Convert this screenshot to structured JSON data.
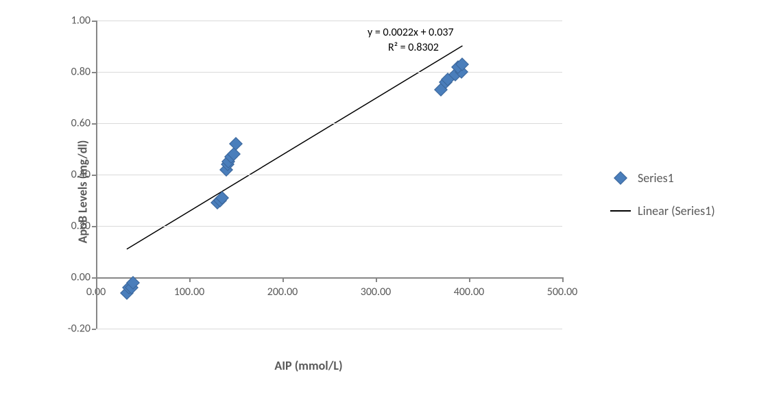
{
  "chart": {
    "type": "scatter",
    "x_axis": {
      "label": "AIP (mmol/L)",
      "min": 0,
      "max": 500,
      "ticks": [
        0,
        100,
        200,
        300,
        400,
        500
      ],
      "tick_labels": [
        "0.00",
        "100.00",
        "200.00",
        "300.00",
        "400.00",
        "500.00"
      ],
      "label_fontsize": 18,
      "tick_fontsize": 16,
      "color": "#595959"
    },
    "y_axis": {
      "label": "ApoB Levels (mg/dl)",
      "min": -0.2,
      "max": 1.0,
      "ticks": [
        -0.2,
        0.0,
        0.2,
        0.4,
        0.6,
        0.8,
        1.0
      ],
      "tick_labels": [
        "-0.20",
        "0.00",
        "0.20",
        "0.40",
        "0.60",
        "0.80",
        "1.00"
      ],
      "label_fontsize": 18,
      "tick_fontsize": 16,
      "color": "#595959"
    },
    "grid_color": "#d9d9d9",
    "background_color": "#ffffff",
    "axis_line_color": "#868686",
    "series": {
      "name": "Series1",
      "marker_color": "#4a7ebb",
      "marker_border": "#3a6599",
      "marker_style": "diamond",
      "marker_size": 14,
      "points": [
        {
          "x": 33,
          "y": -0.06
        },
        {
          "x": 35,
          "y": -0.04
        },
        {
          "x": 38,
          "y": -0.04
        },
        {
          "x": 40,
          "y": -0.02
        },
        {
          "x": 130,
          "y": 0.29
        },
        {
          "x": 133,
          "y": 0.3
        },
        {
          "x": 135,
          "y": 0.31
        },
        {
          "x": 140,
          "y": 0.42
        },
        {
          "x": 141,
          "y": 0.44
        },
        {
          "x": 142,
          "y": 0.45
        },
        {
          "x": 145,
          "y": 0.47
        },
        {
          "x": 148,
          "y": 0.48
        },
        {
          "x": 150,
          "y": 0.52
        },
        {
          "x": 370,
          "y": 0.73
        },
        {
          "x": 375,
          "y": 0.76
        },
        {
          "x": 377,
          "y": 0.77
        },
        {
          "x": 385,
          "y": 0.79
        },
        {
          "x": 392,
          "y": 0.8
        },
        {
          "x": 388,
          "y": 0.82
        },
        {
          "x": 393,
          "y": 0.83
        }
      ]
    },
    "trendline": {
      "name": "Linear (Series1)",
      "color": "#000000",
      "line_width": 1.5,
      "slope": 0.0022,
      "intercept": 0.037,
      "x_start": 33,
      "x_end": 393,
      "equation": "y = 0.0022x + 0.037",
      "r_squared": "R² = 0.8302",
      "equation_x": 350,
      "equation_y_top": 0.98,
      "equation_fontsize": 16
    },
    "legend": {
      "items": [
        {
          "type": "diamond",
          "label": "Series1"
        },
        {
          "type": "line",
          "label": "Linear (Series1)"
        }
      ],
      "fontsize": 18,
      "color": "#595959"
    }
  }
}
